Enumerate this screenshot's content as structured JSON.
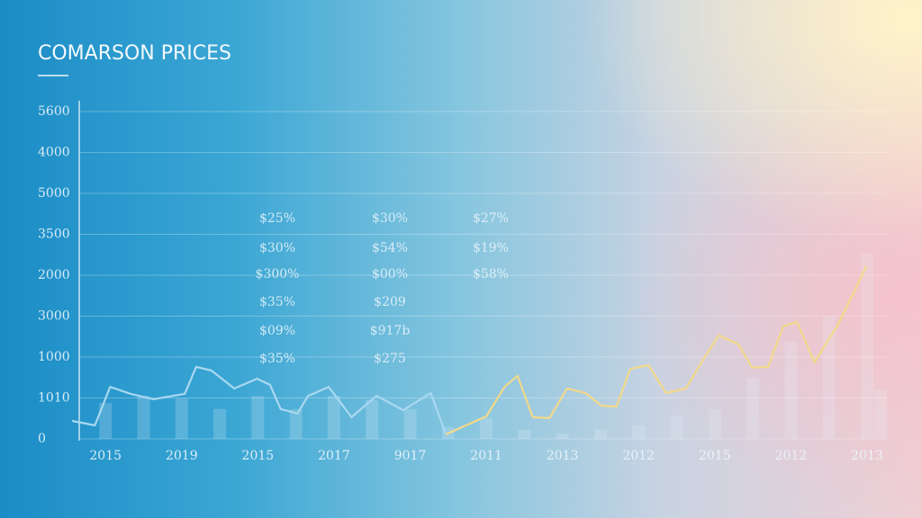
{
  "chart_data": {
    "type": "line",
    "title": "COMARSON PRICES",
    "xlim": [
      -0.44,
      10.26
    ],
    "ylim": [
      0,
      8
    ],
    "grid": true,
    "xticks": [
      {
        "value": 0,
        "label": "2015"
      },
      {
        "value": 1,
        "label": "2019"
      },
      {
        "value": 2,
        "label": "2015"
      },
      {
        "value": 3,
        "label": "2017"
      },
      {
        "value": 4,
        "label": "9017"
      },
      {
        "value": 5,
        "label": "2011"
      },
      {
        "value": 6,
        "label": "2013"
      },
      {
        "value": 7,
        "label": "2012"
      },
      {
        "value": 8,
        "label": "2015"
      },
      {
        "value": 9,
        "label": "2012"
      },
      {
        "value": 10,
        "label": "2013"
      }
    ],
    "yticks": [
      {
        "value": 0,
        "label": "0"
      },
      {
        "value": 1,
        "label": "1010"
      },
      {
        "value": 2,
        "label": "1000"
      },
      {
        "value": 3,
        "label": "3000"
      },
      {
        "value": 4,
        "label": "2000"
      },
      {
        "value": 5,
        "label": "3500"
      },
      {
        "value": 6,
        "label": "5000"
      },
      {
        "value": 7,
        "label": "4000"
      },
      {
        "value": 8,
        "label": "5600"
      }
    ],
    "bars": {
      "color": "#e8f2fa",
      "x": [
        0,
        0.5,
        1,
        1.5,
        2,
        2.5,
        3,
        3.5,
        4,
        4.5,
        5,
        5.5,
        6,
        6.5,
        7,
        7.5,
        8,
        8.5,
        9,
        9.5,
        10,
        10.18
      ],
      "values": [
        0.88,
        1.05,
        0.99,
        0.73,
        1.05,
        0.73,
        1.05,
        0.95,
        0.73,
        0.29,
        0.51,
        0.22,
        0.13,
        0.22,
        0.33,
        0.57,
        0.73,
        1.49,
        2.37,
        2.99,
        4.53,
        1.21
      ]
    },
    "lines": [
      {
        "color": "#a9d8f0",
        "x": [
          -0.44,
          -0.14,
          0.06,
          0.33,
          0.63,
          1.04,
          1.19,
          1.39,
          1.69,
          1.99,
          2.16,
          2.3,
          2.52,
          2.66,
          2.93,
          3.23,
          3.56,
          3.91,
          4.27,
          4.47
        ],
        "values": [
          0.44,
          0.33,
          1.27,
          1.1,
          0.97,
          1.1,
          1.76,
          1.67,
          1.23,
          1.47,
          1.32,
          0.73,
          0.62,
          1.05,
          1.27,
          0.53,
          1.05,
          0.7,
          1.12,
          0.11
        ]
      },
      {
        "color": "#f2d98a",
        "x": [
          4.47,
          5.0,
          5.24,
          5.41,
          5.61,
          5.83,
          6.06,
          6.3,
          6.51,
          6.71,
          6.89,
          7.13,
          7.36,
          7.62,
          7.81,
          8.05,
          8.31,
          8.49,
          8.7,
          8.9,
          9.08,
          9.31,
          9.61,
          9.85,
          9.99
        ],
        "values": [
          0.11,
          0.55,
          1.27,
          1.54,
          0.53,
          0.51,
          1.23,
          1.12,
          0.81,
          0.79,
          1.71,
          1.8,
          1.12,
          1.23,
          1.82,
          2.53,
          2.31,
          1.74,
          1.76,
          2.75,
          2.86,
          1.87,
          2.77,
          3.67,
          4.22
        ]
      }
    ],
    "annotations": [
      [
        "$25%",
        "$30%",
        "$300%",
        "$35%",
        "$09%",
        "$35%"
      ],
      [
        "$30%",
        "$54%",
        "$00%",
        "$209",
        "$917b",
        "$275"
      ],
      [
        "$27%",
        "$19%",
        "$58%"
      ]
    ]
  }
}
